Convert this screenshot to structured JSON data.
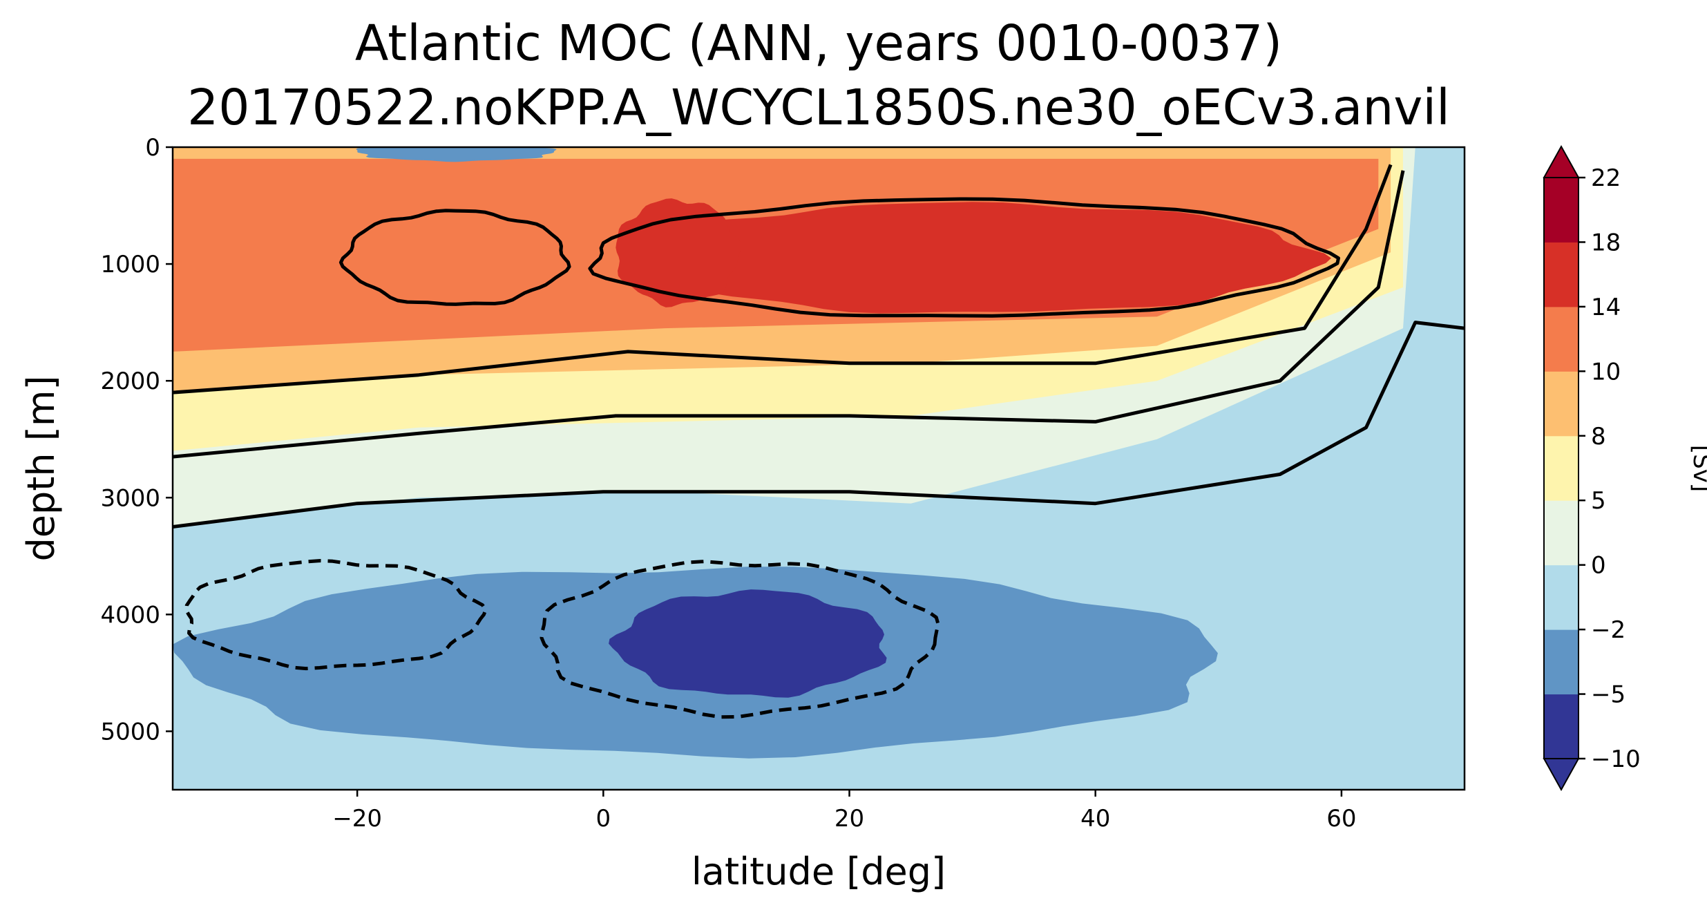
{
  "chart_data": {
    "type": "contourf",
    "title": "Atlantic MOC (ANN, years 0010-0037)",
    "subtitle": "20170522.noKPP.A_WCYCL1850S.ne30_oECv3.anvil",
    "xlabel": "latitude [deg]",
    "ylabel": "depth [m]",
    "xlim": [
      -35,
      70
    ],
    "ylim": [
      5500,
      0
    ],
    "y_inverted": true,
    "x_ticks": [
      -20,
      0,
      20,
      40,
      60
    ],
    "x_tick_labels": [
      "−20",
      "0",
      "20",
      "40",
      "60"
    ],
    "y_ticks": [
      0,
      1000,
      2000,
      3000,
      4000,
      5000
    ],
    "y_tick_labels": [
      "0",
      "1000",
      "2000",
      "3000",
      "4000",
      "5000"
    ],
    "colorbar": {
      "label": "[Sv]",
      "levels": [
        -10,
        -5,
        -2,
        0,
        5,
        8,
        10,
        14,
        18,
        22
      ],
      "tick_labels": [
        "−10",
        "−5",
        "−2",
        "0",
        "5",
        "8",
        "10",
        "14",
        "18",
        "22"
      ],
      "colors": [
        "#313695",
        "#6095c5",
        "#b1dbea",
        "#e8f4e4",
        "#fef4ad",
        "#fdbf71",
        "#f47c4c",
        "#d73027",
        "#a50026"
      ],
      "extend": "both",
      "under_color": "#313695",
      "over_color": "#a50026"
    },
    "contour_lines_sv": [
      -5,
      0,
      5,
      8,
      10,
      14
    ],
    "negative_contours_dashed": true,
    "field_features": [
      {
        "feature": "upper NADW cell maximum",
        "value_sv": 14,
        "lat_range": [
          1,
          58
        ],
        "depth_range": [
          400,
          1500
        ]
      },
      {
        "feature": "southern upper cell core",
        "value_sv": 10,
        "lat_range": [
          -35,
          -1
        ],
        "depth_range": [
          0,
          1700
        ]
      },
      {
        "feature": "AABW cell minimum",
        "value_sv": -5,
        "lat_range": [
          1,
          23
        ],
        "depth_range": [
          3650,
          4700
        ]
      },
      {
        "feature": "southern AABW cell",
        "value_sv": -2,
        "lat_range": [
          -35,
          51
        ],
        "depth_range": [
          3500,
          5300
        ]
      }
    ]
  }
}
